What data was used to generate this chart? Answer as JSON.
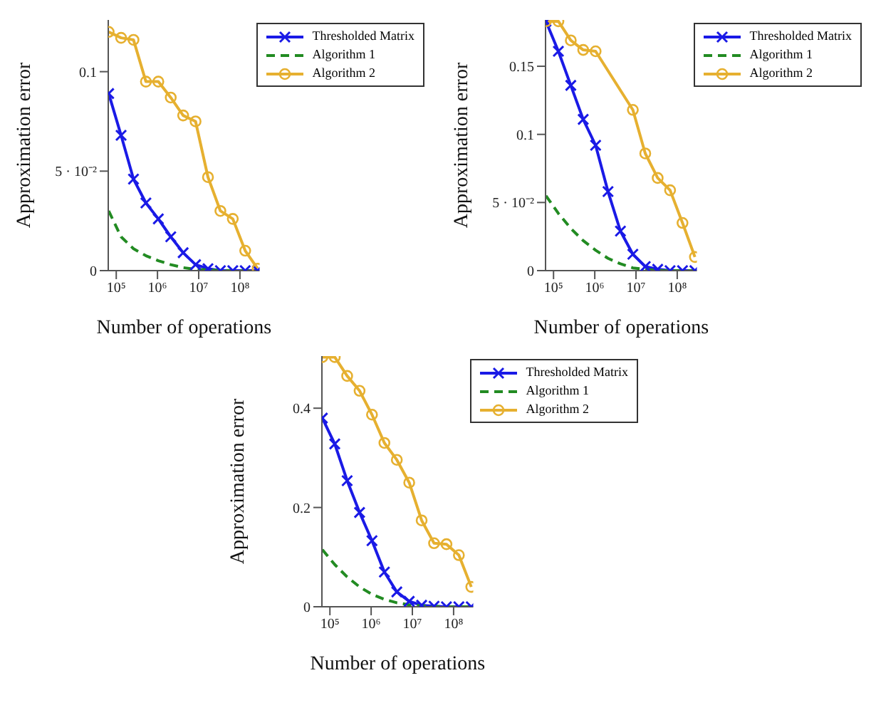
{
  "chart_data": [
    {
      "type": "line",
      "xlabel": "Number of operations",
      "ylabel": "Approximation error",
      "log": "x",
      "legend": "top right",
      "grid": false,
      "x": [
        65536,
        131072,
        262144,
        524288,
        1048576,
        2097152,
        4194304,
        8388608,
        16777216,
        33554432,
        67108864,
        134217728,
        268435456
      ],
      "xlim": [
        64000,
        300000000
      ],
      "xticks": [
        {
          "value": 100000,
          "label": "10⁵"
        },
        {
          "value": 1000000,
          "label": "10⁶"
        },
        {
          "value": 10000000,
          "label": "10⁷"
        },
        {
          "value": 100000000,
          "label": "10⁸"
        }
      ],
      "ylim": [
        0,
        0.126
      ],
      "yticks": [
        0,
        {
          "value": 0.05,
          "label": "5 · 10⁻²"
        },
        0.1
      ],
      "series": [
        {
          "name": "Thresholded Matrix",
          "color": "#1a1ae6",
          "marker": "cross",
          "line_style": "solid",
          "values": [
            0.089,
            0.068,
            0.046,
            0.034,
            0.026,
            0.017,
            0.009,
            0.003,
            0.001,
            0,
            0,
            0,
            0
          ]
        },
        {
          "name": "Algorithm 1",
          "color": "#228b22",
          "marker": "none",
          "line_style": "dashed",
          "values": [
            0.03,
            0.017,
            0.011,
            0.0075,
            0.005,
            0.003,
            0.0015,
            0.0007,
            0.0003,
            0.0001,
            0,
            0,
            0
          ]
        },
        {
          "name": "Algorithm 2",
          "color": "#e6b030",
          "marker": "circle",
          "line_style": "solid",
          "values": [
            0.12,
            0.117,
            0.116,
            0.095,
            0.095,
            0.087,
            0.078,
            0.075,
            0.047,
            0.03,
            0.026,
            0.01,
            0.001
          ]
        }
      ]
    },
    {
      "type": "line",
      "xlabel": "Number of operations",
      "ylabel": "Approximation error",
      "log": "x",
      "legend": "top right",
      "grid": false,
      "x": [
        65536,
        131072,
        262144,
        524288,
        1048576,
        2097152,
        4194304,
        8388608,
        16777216,
        33554432,
        67108864,
        134217728,
        268435456
      ],
      "xlim": [
        64000,
        300000000
      ],
      "xticks": [
        {
          "value": 100000,
          "label": "10⁵"
        },
        {
          "value": 1000000,
          "label": "10⁶"
        },
        {
          "value": 10000000,
          "label": "10⁷"
        },
        {
          "value": 100000000,
          "label": "10⁸"
        }
      ],
      "ylim": [
        0,
        0.184
      ],
      "yticks": [
        0,
        {
          "value": 0.05,
          "label": "5 · 10⁻²"
        },
        0.1,
        0.15
      ],
      "series": [
        {
          "name": "Thresholded Matrix",
          "color": "#1a1ae6",
          "marker": "cross",
          "line_style": "solid",
          "values": [
            0.183,
            0.161,
            0.136,
            0.111,
            0.092,
            0.058,
            0.029,
            0.012,
            0.003,
            0.001,
            0,
            0,
            0
          ]
        },
        {
          "name": "Algorithm 1",
          "color": "#228b22",
          "marker": "none",
          "line_style": "dashed",
          "values": [
            0.055,
            0.042,
            0.031,
            0.022,
            0.015,
            0.009,
            0.005,
            0.002,
            0.001,
            0,
            0,
            0,
            0
          ]
        },
        {
          "name": "Algorithm 2",
          "color": "#e6b030",
          "marker": "circle",
          "line_style": "solid",
          "values": [
            0.183,
            0.183,
            0.169,
            0.162,
            0.161,
            null,
            null,
            0.118,
            0.086,
            0.068,
            0.059,
            0.035,
            0.01
          ]
        }
      ]
    },
    {
      "type": "line",
      "xlabel": "Number of operations",
      "ylabel": "Approximation error",
      "log": "x",
      "legend": "top right",
      "grid": false,
      "x": [
        65536,
        131072,
        262144,
        524288,
        1048576,
        2097152,
        4194304,
        8388608,
        16777216,
        33554432,
        67108864,
        134217728,
        268435456
      ],
      "xlim": [
        64000,
        300000000
      ],
      "xticks": [
        {
          "value": 100000,
          "label": "10⁵"
        },
        {
          "value": 1000000,
          "label": "10⁶"
        },
        {
          "value": 10000000,
          "label": "10⁷"
        },
        {
          "value": 100000000,
          "label": "10⁸"
        }
      ],
      "ylim": [
        0,
        0.505
      ],
      "yticks": [
        0,
        0.2,
        0.4
      ],
      "series": [
        {
          "name": "Thresholded Matrix",
          "color": "#1a1ae6",
          "marker": "cross",
          "line_style": "solid",
          "values": [
            0.38,
            0.328,
            0.254,
            0.19,
            0.133,
            0.07,
            0.03,
            0.011,
            0.003,
            0.001,
            0,
            0,
            0
          ]
        },
        {
          "name": "Algorithm 1",
          "color": "#228b22",
          "marker": "none",
          "line_style": "dashed",
          "values": [
            0.115,
            0.085,
            0.06,
            0.04,
            0.025,
            0.015,
            0.008,
            0.004,
            0.002,
            0.001,
            0,
            0,
            0
          ]
        },
        {
          "name": "Algorithm 2",
          "color": "#e6b030",
          "marker": "circle",
          "line_style": "solid",
          "values": [
            0.503,
            0.503,
            0.465,
            0.435,
            0.387,
            0.33,
            0.296,
            0.25,
            0.174,
            0.128,
            0.126,
            0.104,
            0.04
          ]
        }
      ]
    }
  ]
}
